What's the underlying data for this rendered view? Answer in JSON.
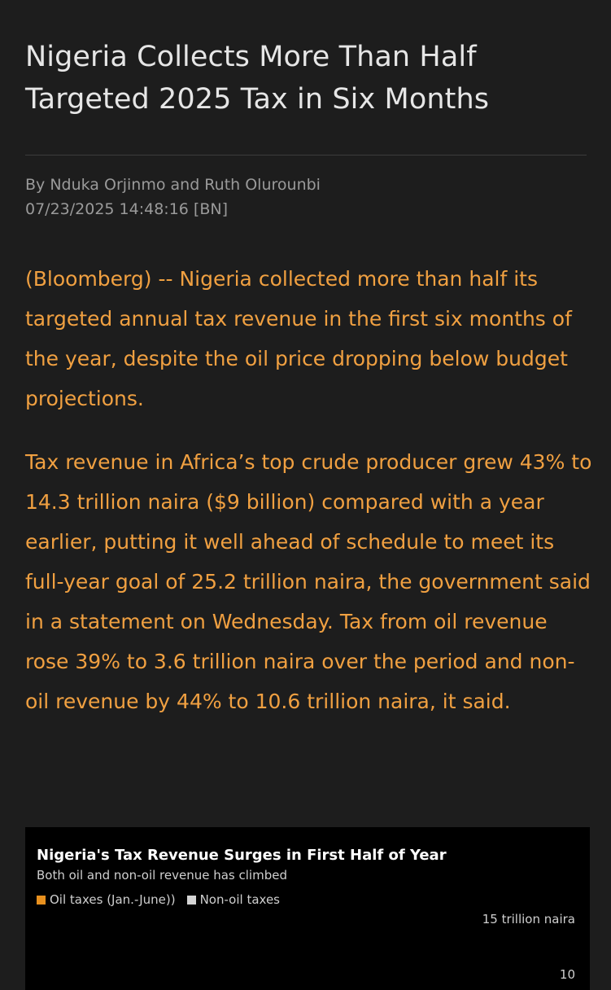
{
  "article": {
    "headline": "Nigeria Collects More Than Half Targeted 2025 Tax in Six Months",
    "byline": "By Nduka Orjinmo and Ruth Olurounbi",
    "timestamp": "07/23/2025 14:48:16 [BN]",
    "paragraphs": [
      "(Bloomberg) -- Nigeria collected more than half its targeted annual tax revenue in the first six months of the year, despite the oil price dropping below budget projections.",
      "Tax revenue in Africa’s top crude producer grew 43% to 14.3 trillion naira ($9 billion) compared with a year earlier, putting it well ahead of schedule to meet its full-year goal of 25.2 trillion naira, the government said in a statement on Wednesday. Tax from oil revenue rose 39% to 3.6 trillion naira over the period and non-oil revenue by 44% to 10.6 trillion naira, it said."
    ]
  },
  "chart": {
    "title": "Nigeria's Tax Revenue Surges in First Half of Year",
    "subtitle": "Both oil and non-oil revenue has climbed",
    "legend": [
      {
        "label": "Oil taxes (Jan.-June))",
        "color": "#e8901e"
      },
      {
        "label": "Non-oil taxes",
        "color": "#d4d4d4"
      }
    ],
    "unit_label": "15 trillion naira",
    "visible_tick": "10"
  },
  "colors": {
    "background": "#1d1d1d",
    "headline": "#e6e6e6",
    "byline": "#9a9a9a",
    "body_text": "#f0a041",
    "chart_background": "#000000"
  }
}
